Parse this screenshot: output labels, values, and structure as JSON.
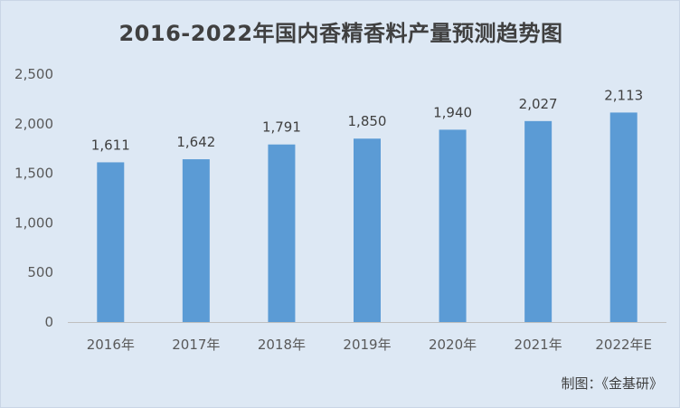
{
  "chart_data": {
    "type": "bar",
    "title": "2016-2022年国内香精香料产量预测趋势图",
    "categories": [
      "2016年",
      "2017年",
      "2018年",
      "2019年",
      "2020年",
      "2021年",
      "2022年E"
    ],
    "values": [
      1611,
      1642,
      1791,
      1850,
      1940,
      2027,
      2113
    ],
    "value_labels": [
      "1,611",
      "1,642",
      "1,791",
      "1,850",
      "1,940",
      "2,027",
      "2,113"
    ],
    "ylim": [
      0,
      2500
    ],
    "yticks": [
      0,
      500,
      1000,
      1500,
      2000,
      2500
    ],
    "ytick_labels": [
      "0",
      "500",
      "1,000",
      "1,500",
      "2,000",
      "2,500"
    ],
    "xlabel": "",
    "ylabel": "",
    "grid": false,
    "legend": "none",
    "bar_color": "#5b9bd5"
  },
  "source_note": "制图：《金基研》"
}
